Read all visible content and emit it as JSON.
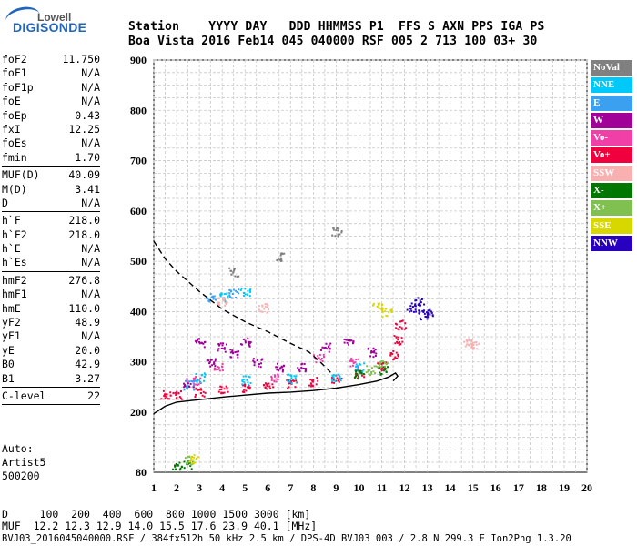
{
  "logo": {
    "line1": "Lowell",
    "line2": "DIGISONDE"
  },
  "header": {
    "line1": "Station    YYYY DAY   DDD HHMMSS P1  FFS S AXN PPS IGA PS",
    "line2": "Boa Vista 2016 Feb14 045 040000 RSF 005 2 713 100 03+ 30"
  },
  "params": {
    "group1": [
      {
        "label": "foF2",
        "value": "11.750"
      },
      {
        "label": "foF1",
        "value": "N/A"
      },
      {
        "label": "foF1p",
        "value": "N/A"
      },
      {
        "label": "foE",
        "value": "N/A"
      },
      {
        "label": "foEp",
        "value": "0.43"
      },
      {
        "label": "fxI",
        "value": "12.25"
      },
      {
        "label": "foEs",
        "value": "N/A"
      },
      {
        "label": "fmin",
        "value": "1.70"
      }
    ],
    "group2": [
      {
        "label": "MUF(D)",
        "value": "40.09"
      },
      {
        "label": "M(D)",
        "value": "3.41"
      },
      {
        "label": "D",
        "value": "N/A"
      }
    ],
    "group3": [
      {
        "label": "h`F",
        "value": "218.0"
      },
      {
        "label": "h`F2",
        "value": "218.0"
      },
      {
        "label": "h`E",
        "value": "N/A"
      },
      {
        "label": "h`Es",
        "value": "N/A"
      }
    ],
    "group4": [
      {
        "label": "hmF2",
        "value": "276.8"
      },
      {
        "label": "hmF1",
        "value": "N/A"
      },
      {
        "label": "hmE",
        "value": "110.0"
      },
      {
        "label": "yF2",
        "value": "48.9"
      },
      {
        "label": "yF1",
        "value": "N/A"
      },
      {
        "label": "yE",
        "value": "20.0"
      },
      {
        "label": "B0",
        "value": "42.9"
      },
      {
        "label": "B1",
        "value": "3.27"
      }
    ],
    "group5": [
      {
        "label": "C-level",
        "value": "22"
      }
    ]
  },
  "auto": {
    "line1": "Auto:",
    "line2": "Artist5",
    "line3": "500200"
  },
  "footer": {
    "line1": "D     100  200  400  600  800 1000 1500 3000 [km]",
    "line2": "MUF  12.2 12.3 12.9 14.0 15.5 17.6 23.9 40.1 [MHz]",
    "line3": "BVJ03_2016045040000.RSF / 384fx512h 50 kHz 2.5 km / DPS-4D BVJ03 003 / 2.8 N 299.3 E Ion2Png 1.3.20"
  },
  "legend": [
    {
      "label": "NoVal",
      "color": "#808080"
    },
    {
      "label": "NNE",
      "color": "#00c8f8"
    },
    {
      "label": "E",
      "color": "#3ca0f0"
    },
    {
      "label": "W",
      "color": "#a00098"
    },
    {
      "label": "Vo-",
      "color": "#f040a8"
    },
    {
      "label": "Vo+",
      "color": "#f0003c"
    },
    {
      "label": "SSW",
      "color": "#f8b0b0"
    },
    {
      "label": "X-",
      "color": "#007800"
    },
    {
      "label": "X+",
      "color": "#80c050"
    },
    {
      "label": "SSE",
      "color": "#d8d800"
    },
    {
      "label": "NNW",
      "color": "#2800c0"
    }
  ],
  "chart_data": {
    "type": "scatter",
    "xlabel": "",
    "ylabel": "",
    "xlim": [
      1,
      20
    ],
    "ylim": [
      80,
      900
    ],
    "x_ticks": [
      "1",
      "2",
      "3",
      "4",
      "5",
      "6",
      "7",
      "8",
      "9",
      "10",
      "11",
      "12",
      "13",
      "14",
      "15",
      "16",
      "17",
      "18",
      "19",
      "20"
    ],
    "y_ticks": [
      "80",
      "200",
      "300",
      "400",
      "500",
      "600",
      "700",
      "800",
      "900"
    ],
    "grid": true,
    "legend_position": "right",
    "series": [
      {
        "name": "Vo+",
        "color": "#f0003c",
        "points": [
          [
            1.5,
            235
          ],
          [
            2,
            235
          ],
          [
            3,
            240
          ],
          [
            4,
            245
          ],
          [
            5,
            248
          ],
          [
            6,
            252
          ],
          [
            7,
            258
          ],
          [
            8,
            262
          ],
          [
            9,
            268
          ],
          [
            10,
            278
          ],
          [
            11,
            292
          ],
          [
            11.5,
            315
          ],
          [
            11.7,
            345
          ],
          [
            11.8,
            375
          ]
        ]
      },
      {
        "name": "W",
        "color": "#a00098",
        "points": [
          [
            2.5,
            260
          ],
          [
            3.5,
            300
          ],
          [
            4.5,
            320
          ],
          [
            5.5,
            300
          ],
          [
            6.5,
            290
          ],
          [
            7.5,
            290
          ],
          [
            8.5,
            330
          ],
          [
            9.5,
            340
          ],
          [
            10.5,
            320
          ],
          [
            3,
            340
          ],
          [
            4,
            330
          ],
          [
            5,
            340
          ]
        ]
      },
      {
        "name": "Vo-",
        "color": "#f040a8",
        "points": [
          [
            2.8,
            265
          ],
          [
            3.8,
            290
          ],
          [
            6.2,
            270
          ],
          [
            8.2,
            310
          ],
          [
            9.8,
            300
          ]
        ]
      },
      {
        "name": "NNE",
        "color": "#00c8f8",
        "points": [
          [
            3,
            270
          ],
          [
            5,
            265
          ],
          [
            7,
            268
          ],
          [
            9,
            272
          ],
          [
            10,
            290
          ],
          [
            4,
            430
          ],
          [
            5,
            440
          ]
        ]
      },
      {
        "name": "E",
        "color": "#3ca0f0",
        "points": [
          [
            3.5,
            430
          ],
          [
            4.5,
            438
          ],
          [
            2.5,
            255
          ]
        ]
      },
      {
        "name": "X-",
        "color": "#007800",
        "points": [
          [
            2,
            95
          ],
          [
            2.5,
            97
          ],
          [
            10,
            275
          ],
          [
            11,
            285
          ]
        ]
      },
      {
        "name": "X+",
        "color": "#80c050",
        "points": [
          [
            10.5,
            285
          ],
          [
            11,
            300
          ],
          [
            2.5,
            105
          ]
        ]
      },
      {
        "name": "SSE",
        "color": "#d8d800",
        "points": [
          [
            10.8,
            410
          ],
          [
            11.2,
            400
          ],
          [
            2.7,
            108
          ]
        ]
      },
      {
        "name": "NNW",
        "color": "#2800c0",
        "points": [
          [
            12.3,
            410
          ],
          [
            12.6,
            420
          ],
          [
            13,
            400
          ],
          [
            12.8,
            395
          ]
        ]
      },
      {
        "name": "SSW",
        "color": "#f8b0b0",
        "points": [
          [
            14.8,
            340
          ],
          [
            15,
            335
          ],
          [
            4,
            420
          ],
          [
            5.8,
            408
          ]
        ]
      },
      {
        "name": "NoVal",
        "color": "#808080",
        "points": [
          [
            4.5,
            480
          ],
          [
            6.5,
            510
          ],
          [
            9,
            560
          ]
        ]
      }
    ],
    "curves": [
      {
        "name": "ordinary-trace",
        "color": "#000000",
        "dashed": false,
        "points": [
          [
            1,
            197
          ],
          [
            1.5,
            212
          ],
          [
            2,
            220
          ],
          [
            3,
            225
          ],
          [
            4,
            230
          ],
          [
            5,
            234
          ],
          [
            6,
            238
          ],
          [
            7,
            240
          ],
          [
            8,
            243
          ],
          [
            9,
            248
          ],
          [
            10,
            255
          ],
          [
            10.8,
            262
          ],
          [
            11.3,
            270
          ],
          [
            11.6,
            278
          ],
          [
            11.7,
            272
          ],
          [
            11.5,
            262
          ]
        ]
      },
      {
        "name": "profile",
        "color": "#000000",
        "dashed": true,
        "points": [
          [
            1,
            540
          ],
          [
            1.5,
            505
          ],
          [
            2,
            480
          ],
          [
            3,
            440
          ],
          [
            4,
            405
          ],
          [
            5,
            380
          ],
          [
            6,
            360
          ],
          [
            7,
            337
          ],
          [
            7.8,
            320
          ],
          [
            8.3,
            300
          ],
          [
            8.8,
            277
          ]
        ]
      }
    ]
  }
}
